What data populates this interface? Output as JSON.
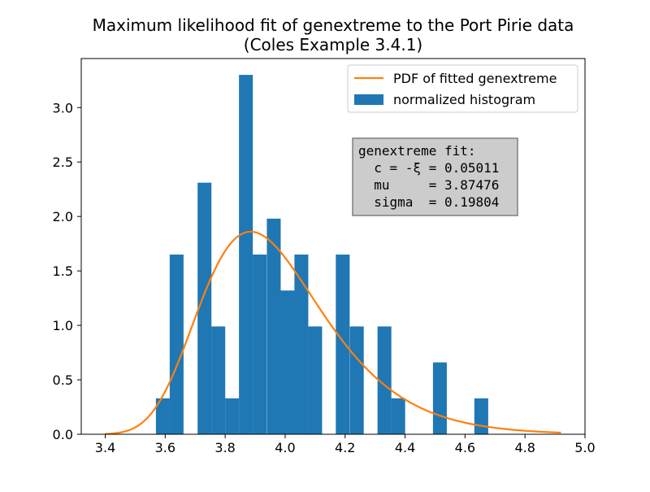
{
  "chart_data": {
    "type": "bar",
    "title": "Maximum likelihood fit of genextreme to the Port Pirie data",
    "subtitle": "(Coles Example 3.4.1)",
    "xlabel": "",
    "ylabel": "",
    "xlim": [
      3.32,
      5.0
    ],
    "ylim": [
      0.0,
      3.45
    ],
    "x_ticks": [
      "3.4",
      "3.6",
      "3.8",
      "4.0",
      "4.2",
      "4.4",
      "4.6",
      "4.8",
      "5.0"
    ],
    "y_ticks": [
      "0.0",
      "0.5",
      "1.0",
      "1.5",
      "2.0",
      "2.5",
      "3.0"
    ],
    "grid": false,
    "legend_position": "top-right",
    "colors": {
      "histogram": "#1f77b4",
      "pdf": "#ff7f0e",
      "fit_box": "#cccccc"
    },
    "series": [
      {
        "name": "normalized histogram",
        "kind": "histogram",
        "bin_width": 0.0462,
        "bins": [
          {
            "x0": 3.569,
            "height": 0.33
          },
          {
            "x0": 3.615,
            "height": 1.65
          },
          {
            "x0": 3.708,
            "height": 2.31
          },
          {
            "x0": 3.754,
            "height": 0.99
          },
          {
            "x0": 3.8,
            "height": 0.33
          },
          {
            "x0": 3.846,
            "height": 3.3
          },
          {
            "x0": 3.892,
            "height": 1.65
          },
          {
            "x0": 3.939,
            "height": 1.98
          },
          {
            "x0": 3.985,
            "height": 1.32
          },
          {
            "x0": 4.031,
            "height": 1.65
          },
          {
            "x0": 4.077,
            "height": 0.99
          },
          {
            "x0": 4.169,
            "height": 1.65
          },
          {
            "x0": 4.216,
            "height": 0.99
          },
          {
            "x0": 4.308,
            "height": 0.99
          },
          {
            "x0": 4.354,
            "height": 0.33
          },
          {
            "x0": 4.493,
            "height": 0.66
          },
          {
            "x0": 4.631,
            "height": 0.33
          }
        ]
      },
      {
        "name": "PDF of fitted genextreme",
        "kind": "line",
        "x_range": [
          3.4,
          4.92
        ]
      }
    ],
    "fit": {
      "c": 0.05011,
      "mu": 3.87476,
      "sigma": 0.19804
    },
    "fit_box_lines": [
      "genextreme fit:",
      "  c = -ξ = 0.05011",
      "  mu     = 3.87476",
      "  sigma  = 0.19804"
    ]
  }
}
